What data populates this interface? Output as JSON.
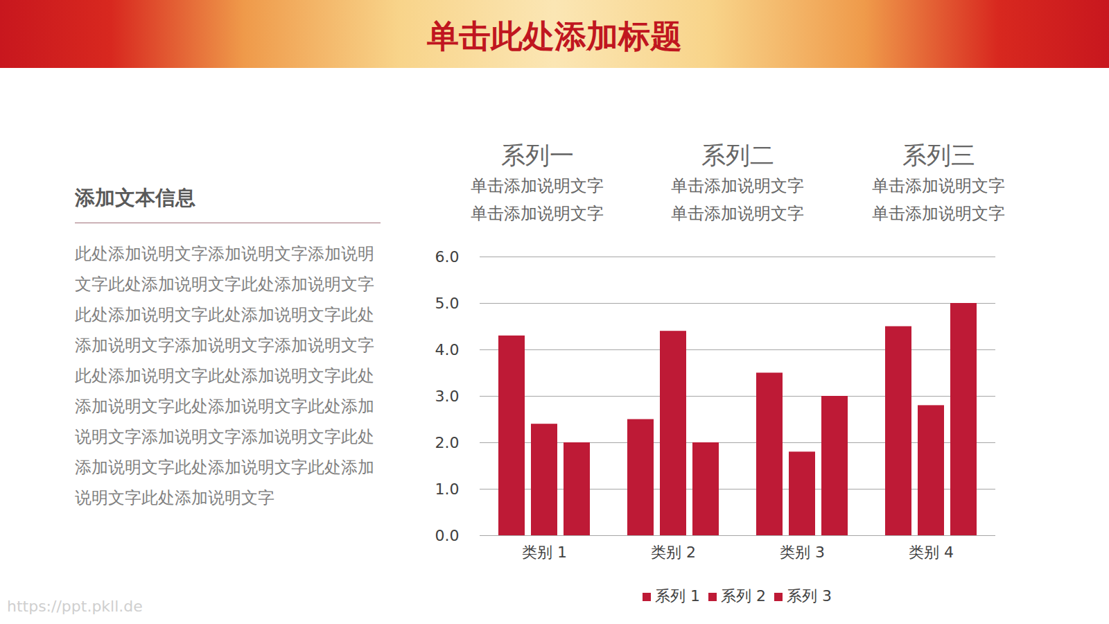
{
  "header": {
    "title": "单击此处添加标题"
  },
  "text_panel": {
    "heading": "添加文本信息",
    "body": "此处添加说明文字添加说明文字添加说明文字此处添加说明文字此处添加说明文字此处添加说明文字此处添加说明文字此处添加说明文字添加说明文字添加说明文字此处添加说明文字此处添加说明文字此处添加说明文字此处添加说明文字此处添加说明文字添加说明文字添加说明文字此处添加说明文字此处添加说明文字此处添加说明文字此处添加说明文字"
  },
  "series_heads": [
    {
      "title": "系列一",
      "lines": [
        "单击添加说明文字",
        "单击添加说明文字"
      ]
    },
    {
      "title": "系列二",
      "lines": [
        "单击添加说明文字",
        "单击添加说明文字"
      ]
    },
    {
      "title": "系列三",
      "lines": [
        "单击添加说明文字",
        "单击添加说明文字"
      ]
    }
  ],
  "watermark": "https://ppt.pkll.de",
  "chart_data": {
    "type": "bar",
    "categories": [
      "类别 1",
      "类别 2",
      "类别 3",
      "类别 4"
    ],
    "series": [
      {
        "name": "系列 1",
        "color": "#be1a36",
        "values": [
          4.3,
          2.5,
          3.5,
          4.5
        ]
      },
      {
        "name": "系列 2",
        "color": "#be1a36",
        "values": [
          2.4,
          4.4,
          1.8,
          2.8
        ]
      },
      {
        "name": "系列 3",
        "color": "#be1a36",
        "values": [
          2,
          2,
          3,
          5
        ]
      }
    ],
    "ylim": [
      0,
      6
    ],
    "yticks": [
      0,
      1,
      2,
      3,
      4,
      5,
      6
    ],
    "grid": true,
    "legend": "bottom"
  }
}
